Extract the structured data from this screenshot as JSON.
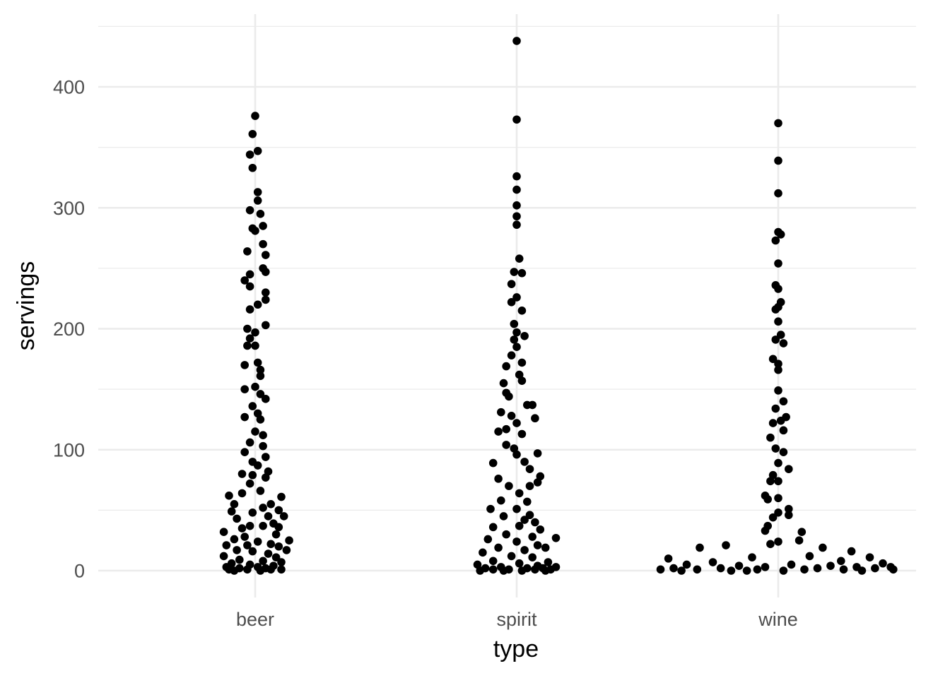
{
  "chart_data": {
    "type": "scatter",
    "subtype": "jitter",
    "xlabel": "type",
    "ylabel": "servings",
    "categories": [
      "beer",
      "spirit",
      "wine"
    ],
    "y_ticks": [
      "0",
      "100",
      "200",
      "300",
      "400"
    ],
    "y_tick_values": [
      0,
      100,
      200,
      300,
      400
    ],
    "ylim": [
      -20,
      460
    ],
    "grid": true,
    "legend": "none",
    "point_color": "#000000",
    "grid_color": "#ebebeb",
    "series": [
      {
        "category": "beer",
        "points": [
          [
            0.0,
            376
          ],
          [
            -0.01,
            361
          ],
          [
            0.01,
            347
          ],
          [
            -0.02,
            344
          ],
          [
            -0.01,
            333
          ],
          [
            0.01,
            313
          ],
          [
            0.01,
            306
          ],
          [
            -0.02,
            298
          ],
          [
            0.02,
            295
          ],
          [
            0.03,
            285
          ],
          [
            -0.01,
            283
          ],
          [
            0.0,
            281
          ],
          [
            0.03,
            270
          ],
          [
            -0.03,
            264
          ],
          [
            0.04,
            261
          ],
          [
            0.03,
            250
          ],
          [
            -0.02,
            245
          ],
          [
            0.04,
            247
          ],
          [
            -0.04,
            240
          ],
          [
            -0.02,
            235
          ],
          [
            0.04,
            230
          ],
          [
            0.04,
            224
          ],
          [
            -0.02,
            216
          ],
          [
            0.01,
            220
          ],
          [
            0.04,
            203
          ],
          [
            -0.03,
            200
          ],
          [
            0.0,
            197
          ],
          [
            -0.02,
            192
          ],
          [
            -0.03,
            186
          ],
          [
            0.0,
            186
          ],
          [
            -0.04,
            170
          ],
          [
            0.01,
            172
          ],
          [
            0.02,
            166
          ],
          [
            0.02,
            161
          ],
          [
            -0.04,
            150
          ],
          [
            0.0,
            152
          ],
          [
            0.02,
            146
          ],
          [
            0.04,
            142
          ],
          [
            -0.01,
            136
          ],
          [
            0.01,
            130
          ],
          [
            -0.04,
            127
          ],
          [
            0.02,
            125
          ],
          [
            0.03,
            112
          ],
          [
            0.0,
            115
          ],
          [
            -0.02,
            106
          ],
          [
            -0.04,
            98
          ],
          [
            0.03,
            103
          ],
          [
            -0.01,
            90
          ],
          [
            0.04,
            94
          ],
          [
            0.01,
            87
          ],
          [
            -0.05,
            80
          ],
          [
            -0.01,
            79
          ],
          [
            0.05,
            82
          ],
          [
            0.04,
            77
          ],
          [
            -0.02,
            72
          ],
          [
            0.02,
            66
          ],
          [
            -0.05,
            64
          ],
          [
            -0.1,
            62
          ],
          [
            0.1,
            61
          ],
          [
            -0.08,
            55
          ],
          [
            0.06,
            55
          ],
          [
            0.09,
            50
          ],
          [
            0.03,
            52
          ],
          [
            -0.09,
            49
          ],
          [
            -0.01,
            48
          ],
          [
            0.11,
            45
          ],
          [
            -0.07,
            43
          ],
          [
            0.05,
            45
          ],
          [
            0.07,
            39
          ],
          [
            -0.02,
            37
          ],
          [
            -0.05,
            35
          ],
          [
            0.03,
            37
          ],
          [
            0.09,
            36
          ],
          [
            -0.12,
            32
          ],
          [
            0.08,
            30
          ],
          [
            -0.04,
            28
          ],
          [
            0.13,
            25
          ],
          [
            -0.08,
            26
          ],
          [
            0.01,
            24
          ],
          [
            -0.11,
            21
          ],
          [
            0.06,
            22
          ],
          [
            -0.03,
            21
          ],
          [
            0.09,
            20
          ],
          [
            -0.07,
            17
          ],
          [
            0.12,
            17
          ],
          [
            -0.01,
            16
          ],
          [
            0.05,
            14
          ],
          [
            -0.12,
            12
          ],
          [
            0.08,
            11
          ],
          [
            -0.06,
            9
          ],
          [
            0.03,
            8
          ],
          [
            0.1,
            7
          ],
          [
            -0.09,
            6
          ],
          [
            -0.02,
            5
          ],
          [
            0.07,
            4
          ],
          [
            -0.11,
            3
          ],
          [
            0.01,
            3
          ],
          [
            -0.06,
            2
          ],
          [
            0.04,
            2
          ],
          [
            -0.1,
            1
          ],
          [
            0.1,
            1
          ],
          [
            -0.03,
            1
          ],
          [
            0.06,
            1
          ],
          [
            -0.08,
            0
          ],
          [
            0.02,
            0
          ]
        ]
      },
      {
        "category": "spirit",
        "points": [
          [
            0.0,
            438
          ],
          [
            0.0,
            373
          ],
          [
            0.0,
            326
          ],
          [
            0.0,
            315
          ],
          [
            0.0,
            302
          ],
          [
            0.0,
            293
          ],
          [
            0.0,
            286
          ],
          [
            0.01,
            258
          ],
          [
            0.02,
            246
          ],
          [
            -0.01,
            247
          ],
          [
            -0.02,
            237
          ],
          [
            0.0,
            226
          ],
          [
            -0.02,
            222
          ],
          [
            0.02,
            215
          ],
          [
            -0.01,
            204
          ],
          [
            0.0,
            197
          ],
          [
            -0.01,
            191
          ],
          [
            0.03,
            194
          ],
          [
            0.0,
            185
          ],
          [
            -0.02,
            178
          ],
          [
            0.02,
            172
          ],
          [
            -0.04,
            169
          ],
          [
            0.01,
            162
          ],
          [
            -0.05,
            155
          ],
          [
            0.02,
            157
          ],
          [
            -0.04,
            147
          ],
          [
            -0.03,
            144
          ],
          [
            0.04,
            137
          ],
          [
            -0.06,
            131
          ],
          [
            0.06,
            137
          ],
          [
            -0.02,
            128
          ],
          [
            0.07,
            126
          ],
          [
            0.0,
            122
          ],
          [
            -0.07,
            115
          ],
          [
            -0.04,
            117
          ],
          [
            0.02,
            113
          ],
          [
            -0.04,
            104
          ],
          [
            -0.01,
            101
          ],
          [
            0.08,
            97
          ],
          [
            0.0,
            96
          ],
          [
            -0.09,
            89
          ],
          [
            0.03,
            90
          ],
          [
            0.05,
            84
          ],
          [
            0.09,
            78
          ],
          [
            -0.07,
            76
          ],
          [
            0.08,
            73
          ],
          [
            -0.03,
            70
          ],
          [
            0.05,
            70
          ],
          [
            0.01,
            64
          ],
          [
            -0.06,
            58
          ],
          [
            0.04,
            57
          ],
          [
            -0.1,
            51
          ],
          [
            0.0,
            51
          ],
          [
            0.05,
            46
          ],
          [
            -0.05,
            45
          ],
          [
            0.03,
            42
          ],
          [
            0.07,
            40
          ],
          [
            -0.09,
            36
          ],
          [
            0.01,
            37
          ],
          [
            0.09,
            34
          ],
          [
            -0.04,
            30
          ],
          [
            0.06,
            28
          ],
          [
            0.15,
            27
          ],
          [
            -0.11,
            26
          ],
          [
            0.0,
            24
          ],
          [
            0.08,
            21
          ],
          [
            -0.07,
            19
          ],
          [
            0.03,
            17
          ],
          [
            0.11,
            19
          ],
          [
            -0.13,
            15
          ],
          [
            -0.02,
            12
          ],
          [
            0.06,
            11
          ],
          [
            -0.09,
            8
          ],
          [
            0.12,
            7
          ],
          [
            0.01,
            6
          ],
          [
            -0.15,
            5
          ],
          [
            0.08,
            4
          ],
          [
            0.15,
            3
          ],
          [
            -0.06,
            3
          ],
          [
            0.04,
            2
          ],
          [
            -0.12,
            2
          ],
          [
            0.1,
            2
          ],
          [
            -0.03,
            1
          ],
          [
            0.07,
            1
          ],
          [
            -0.09,
            1
          ],
          [
            0.13,
            1
          ],
          [
            0.02,
            0
          ],
          [
            -0.14,
            0
          ],
          [
            -0.05,
            0
          ],
          [
            0.11,
            0
          ]
        ]
      },
      {
        "category": "wine",
        "points": [
          [
            0.0,
            370
          ],
          [
            0.0,
            339
          ],
          [
            0.0,
            312
          ],
          [
            0.0,
            280
          ],
          [
            0.01,
            278
          ],
          [
            -0.01,
            273
          ],
          [
            0.0,
            254
          ],
          [
            -0.01,
            236
          ],
          [
            0.0,
            233
          ],
          [
            0.01,
            222
          ],
          [
            0.0,
            218
          ],
          [
            -0.01,
            216
          ],
          [
            0.0,
            206
          ],
          [
            0.01,
            195
          ],
          [
            -0.01,
            191
          ],
          [
            0.02,
            188
          ],
          [
            -0.02,
            175
          ],
          [
            0.0,
            171
          ],
          [
            0.0,
            166
          ],
          [
            0.0,
            149
          ],
          [
            0.02,
            140
          ],
          [
            -0.01,
            134
          ],
          [
            0.03,
            127
          ],
          [
            0.01,
            124
          ],
          [
            -0.02,
            122
          ],
          [
            0.02,
            116
          ],
          [
            -0.03,
            110
          ],
          [
            -0.01,
            101
          ],
          [
            0.02,
            98
          ],
          [
            0.0,
            89
          ],
          [
            0.04,
            84
          ],
          [
            -0.02,
            79
          ],
          [
            -0.03,
            74
          ],
          [
            0.0,
            74
          ],
          [
            -0.05,
            62
          ],
          [
            0.0,
            60
          ],
          [
            -0.04,
            59
          ],
          [
            0.04,
            51
          ],
          [
            0.0,
            48
          ],
          [
            -0.02,
            44
          ],
          [
            0.04,
            46
          ],
          [
            -0.04,
            37
          ],
          [
            0.09,
            32
          ],
          [
            -0.05,
            33
          ],
          [
            0.08,
            25
          ],
          [
            0.0,
            24
          ],
          [
            0.17,
            19
          ],
          [
            -0.2,
            21
          ],
          [
            -0.03,
            22
          ],
          [
            0.28,
            16
          ],
          [
            -0.3,
            19
          ],
          [
            0.12,
            12
          ],
          [
            -0.1,
            11
          ],
          [
            0.35,
            11
          ],
          [
            -0.42,
            10
          ],
          [
            0.24,
            8
          ],
          [
            -0.25,
            7
          ],
          [
            0.4,
            6
          ],
          [
            0.05,
            5
          ],
          [
            -0.35,
            5
          ],
          [
            0.2,
            4
          ],
          [
            -0.15,
            4
          ],
          [
            0.3,
            3
          ],
          [
            -0.05,
            3
          ],
          [
            0.43,
            3
          ],
          [
            -0.4,
            2
          ],
          [
            0.15,
            2
          ],
          [
            -0.22,
            2
          ],
          [
            0.37,
            2
          ],
          [
            -0.08,
            1
          ],
          [
            0.25,
            1
          ],
          [
            -0.31,
            1
          ],
          [
            0.1,
            1
          ],
          [
            -0.45,
            1
          ],
          [
            0.44,
            1
          ],
          [
            -0.18,
            0
          ],
          [
            0.02,
            0
          ],
          [
            -0.37,
            0
          ],
          [
            0.32,
            0
          ],
          [
            -0.12,
            0
          ]
        ]
      }
    ]
  }
}
